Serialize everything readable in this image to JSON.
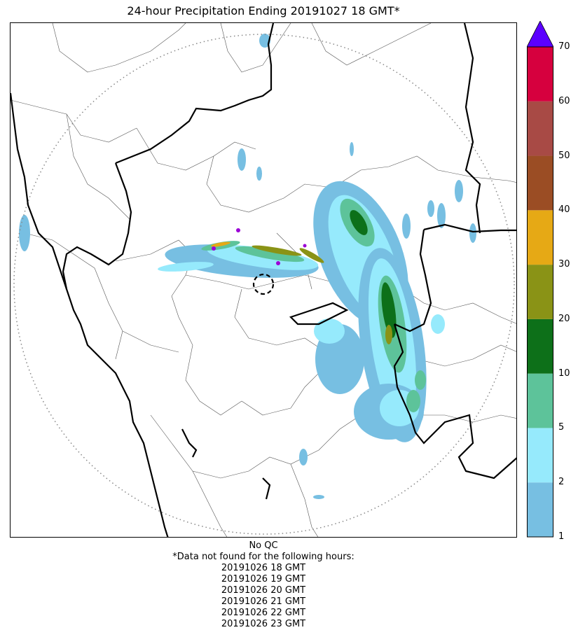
{
  "title": "24-hour Precipitation Ending 20191027 18 GMT*",
  "colorbar": {
    "labels": [
      "1",
      "2",
      "5",
      "10",
      "20",
      "30",
      "40",
      "50",
      "60",
      "70"
    ],
    "colors": [
      "#77bfe2",
      "#96eafc",
      "#5dc39a",
      "#0d7019",
      "#8a9316",
      "#e6a915",
      "#9b4d24",
      "#a84a45",
      "#d6003e"
    ],
    "extend_color": "#5b00ff",
    "extend": "max"
  },
  "footer": {
    "qc": "No QC",
    "note": "*Data not found for the following hours:",
    "hours": [
      "20191026 18 GMT",
      "20191026 19 GMT",
      "20191026 20 GMT",
      "20191026 21 GMT",
      "20191026 22 GMT",
      "20191026 23 GMT"
    ]
  },
  "map": {
    "radar_range_ring": "dotted",
    "radar_site_marker": "dashed-circle",
    "precip_colors": {
      "light": "#77bfe2",
      "moderate": "#96eafc",
      "heavy": "#5dc39a",
      "very_heavy": "#0d7019",
      "intense": "#8a9316",
      "extreme": "#e6a915",
      "peak": "#9b00d6"
    }
  }
}
